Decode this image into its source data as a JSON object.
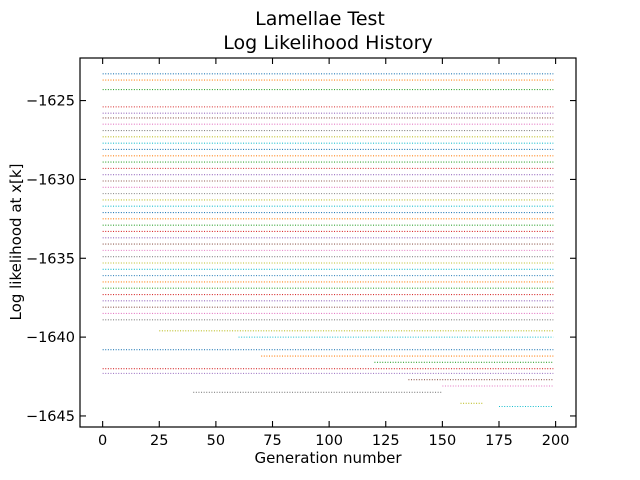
{
  "chart_data": {
    "type": "line",
    "title": "Lamellae Test",
    "subtitle": "Log Likelihood History",
    "xlabel": "Generation number",
    "ylabel": "Log likelihood at x[k]",
    "xlim": [
      -10,
      209
    ],
    "ylim": [
      -1645.7,
      -1622.3
    ],
    "xticks": [
      0,
      25,
      50,
      75,
      100,
      125,
      150,
      175,
      200
    ],
    "yticks": [
      -1625,
      -1630,
      -1635,
      -1640,
      -1645
    ],
    "xticklabels": [
      "0",
      "25",
      "50",
      "75",
      "100",
      "125",
      "150",
      "175",
      "200"
    ],
    "yticklabels": [
      "−1625",
      "−1630",
      "−1635",
      "−1640",
      "−1645"
    ],
    "grid": false,
    "line_style": "dotted",
    "colors": [
      "#1f77b4",
      "#ff7f0e",
      "#2ca02c",
      "#d62728",
      "#9467bd",
      "#8c564b",
      "#e377c2",
      "#7f7f7f",
      "#bcbd22",
      "#17becf"
    ],
    "series": [
      {
        "x_start": 0,
        "x_end": 199,
        "y": -1623.3
      },
      {
        "x_start": 0,
        "x_end": 199,
        "y": -1623.7
      },
      {
        "x_start": 0,
        "x_end": 199,
        "y": -1624.3
      },
      {
        "x_start": 0,
        "x_end": 199,
        "y": -1625.4
      },
      {
        "x_start": 0,
        "x_end": 199,
        "y": -1625.8
      },
      {
        "x_start": 0,
        "x_end": 199,
        "y": -1626.1
      },
      {
        "x_start": 0,
        "x_end": 199,
        "y": -1626.5
      },
      {
        "x_start": 0,
        "x_end": 199,
        "y": -1626.9
      },
      {
        "x_start": 0,
        "x_end": 199,
        "y": -1627.3
      },
      {
        "x_start": 0,
        "x_end": 199,
        "y": -1627.7
      },
      {
        "x_start": 0,
        "x_end": 199,
        "y": -1628.1
      },
      {
        "x_start": 0,
        "x_end": 199,
        "y": -1628.5
      },
      {
        "x_start": 0,
        "x_end": 199,
        "y": -1628.9
      },
      {
        "x_start": 0,
        "x_end": 199,
        "y": -1629.3
      },
      {
        "x_start": 0,
        "x_end": 199,
        "y": -1629.7
      },
      {
        "x_start": 0,
        "x_end": 199,
        "y": -1630.1
      },
      {
        "x_start": 0,
        "x_end": 199,
        "y": -1630.5
      },
      {
        "x_start": 0,
        "x_end": 199,
        "y": -1630.9
      },
      {
        "x_start": 0,
        "x_end": 199,
        "y": -1631.3
      },
      {
        "x_start": 0,
        "x_end": 199,
        "y": -1631.7
      },
      {
        "x_start": 0,
        "x_end": 199,
        "y": -1632.1
      },
      {
        "x_start": 0,
        "x_end": 199,
        "y": -1632.5
      },
      {
        "x_start": 0,
        "x_end": 199,
        "y": -1632.9
      },
      {
        "x_start": 0,
        "x_end": 199,
        "y": -1633.3
      },
      {
        "x_start": 0,
        "x_end": 199,
        "y": -1633.7
      },
      {
        "x_start": 0,
        "x_end": 199,
        "y": -1634.1
      },
      {
        "x_start": 0,
        "x_end": 199,
        "y": -1634.5
      },
      {
        "x_start": 0,
        "x_end": 199,
        "y": -1634.9
      },
      {
        "x_start": 0,
        "x_end": 199,
        "y": -1635.3
      },
      {
        "x_start": 0,
        "x_end": 199,
        "y": -1635.7
      },
      {
        "x_start": 0,
        "x_end": 199,
        "y": -1636.1
      },
      {
        "x_start": 0,
        "x_end": 199,
        "y": -1636.5
      },
      {
        "x_start": 0,
        "x_end": 199,
        "y": -1636.9
      },
      {
        "x_start": 0,
        "x_end": 199,
        "y": -1637.3
      },
      {
        "x_start": 0,
        "x_end": 199,
        "y": -1637.7
      },
      {
        "x_start": 0,
        "x_end": 199,
        "y": -1638.1
      },
      {
        "x_start": 0,
        "x_end": 199,
        "y": -1638.5
      },
      {
        "x_start": 0,
        "x_end": 199,
        "y": -1638.9
      },
      {
        "x_start": 25,
        "x_end": 199,
        "y": -1639.6
      },
      {
        "x_start": 60,
        "x_end": 199,
        "y": -1640.0
      },
      {
        "x_start": 0,
        "x_end": 199,
        "y": -1640.8
      },
      {
        "x_start": 70,
        "x_end": 199,
        "y": -1641.2
      },
      {
        "x_start": 120,
        "x_end": 199,
        "y": -1641.6
      },
      {
        "x_start": 0,
        "x_end": 199,
        "y": -1642.0
      },
      {
        "x_start": 0,
        "x_end": 199,
        "y": -1642.3
      },
      {
        "x_start": 135,
        "x_end": 199,
        "y": -1642.7
      },
      {
        "x_start": 150,
        "x_end": 199,
        "y": -1643.1
      },
      {
        "x_start": 40,
        "x_end": 150,
        "y": -1643.5
      },
      {
        "x_start": 158,
        "x_end": 168,
        "y": -1644.2
      },
      {
        "x_start": 175,
        "x_end": 199,
        "y": -1644.4
      }
    ]
  }
}
